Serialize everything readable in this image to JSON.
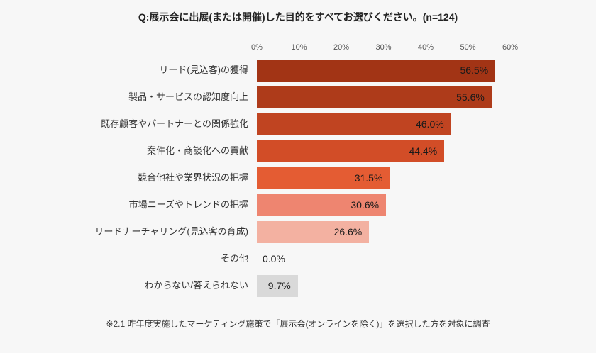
{
  "chart_data": {
    "type": "bar",
    "orientation": "horizontal",
    "title": "Q:展示会に出展(または開催)した目的をすべてお選びください。(n=124)",
    "footnote": "※2.1 昨年度実施したマーケティング施策で「展示会(オンラインを除く)」を選択した方を対象に調査",
    "categories": [
      "リード(見込客)の獲得",
      "製品・サービスの認知度向上",
      "既存顧客やパートナーとの関係強化",
      "案件化・商談化への貢献",
      "競合他社や業界状況の把握",
      "市場ニーズやトレンドの把握",
      "リードナーチャリング(見込客の育成)",
      "その他",
      "わからない/答えられない"
    ],
    "values": [
      56.5,
      55.6,
      46.0,
      44.4,
      31.5,
      30.6,
      26.6,
      0.0,
      9.7
    ],
    "value_labels": [
      "56.5%",
      "55.6%",
      "46.0%",
      "44.4%",
      "31.5%",
      "30.6%",
      "26.6%",
      "0.0%",
      "9.7%"
    ],
    "colors": [
      "#a23415",
      "#ae3b1a",
      "#c04421",
      "#d24d27",
      "#e45c33",
      "#ee8570",
      "#f3b1a1",
      null,
      "#d9d9d9"
    ],
    "axis": {
      "position": "top",
      "min": 0,
      "max": 60,
      "ticks": [
        "0%",
        "10%",
        "20%",
        "30%",
        "40%",
        "50%",
        "60%"
      ]
    },
    "grid": false,
    "legend": "none"
  }
}
